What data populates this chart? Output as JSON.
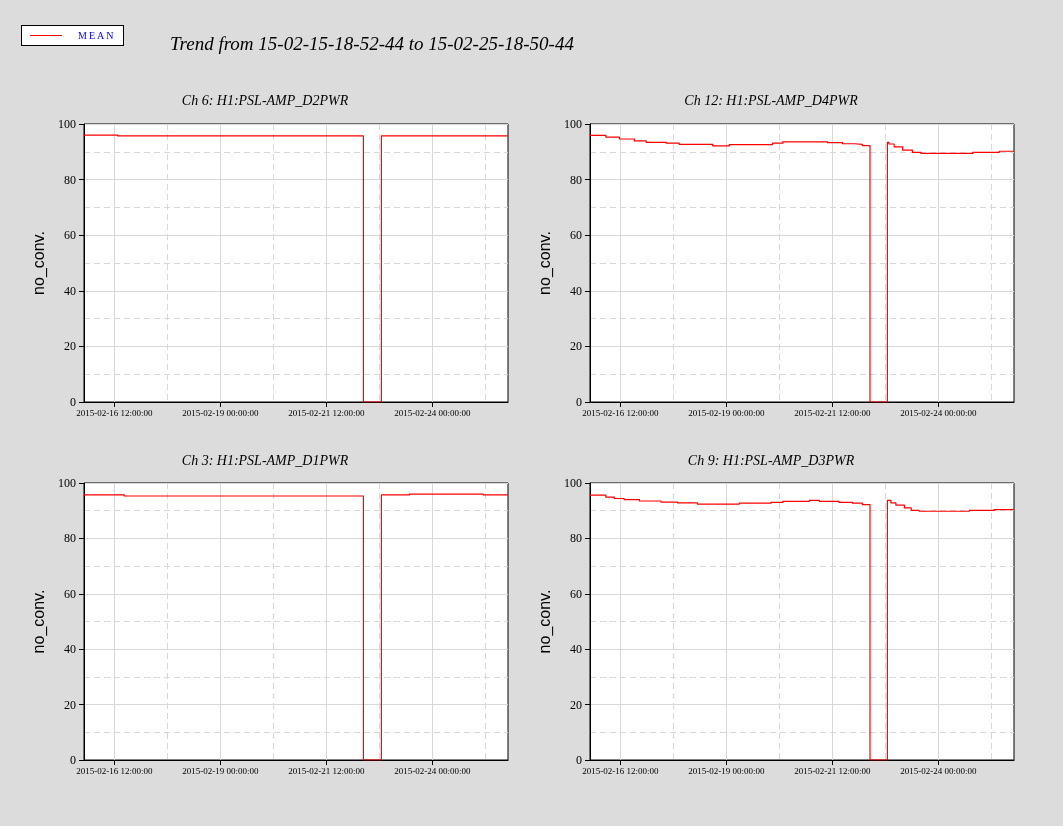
{
  "chart_data": [
    {
      "type": "step",
      "title": "Ch 6: H1:PSL-AMP_D2PWR",
      "ylabel": "no_conv.",
      "annotations": [
        "Trend from 15-02-15-18-52-44 to 15-02-25-18-50-44"
      ],
      "legend": "top left",
      "grid": true,
      "xlim": [
        "2015-02-15T18:52",
        "2015-02-25T18:50"
      ],
      "xticks": [
        {
          "value": "2015-02-16T12:00",
          "label": "2015-02-16 12:00:00"
        },
        {
          "value": "2015-02-17T18:00",
          "label": null
        },
        {
          "value": "2015-02-19T00:00",
          "label": "2015-02-19 00:00:00"
        },
        {
          "value": "2015-02-20T06:00",
          "label": null
        },
        {
          "value": "2015-02-21T12:00",
          "label": "2015-02-21 12:00:00"
        },
        {
          "value": "2015-02-22T18:00",
          "label": null
        },
        {
          "value": "2015-02-24T00:00",
          "label": "2015-02-24 00:00:00"
        },
        {
          "value": "2015-02-25T06:00",
          "label": null
        }
      ],
      "ylim": [
        0,
        100
      ],
      "yticks": [
        0,
        {
          "value": 10,
          "label": null
        },
        20,
        {
          "value": 30,
          "label": null
        },
        40,
        {
          "value": 50,
          "label": null
        },
        60,
        {
          "value": 70,
          "label": null
        },
        80,
        {
          "value": 90,
          "label": null
        },
        100
      ],
      "series": [
        {
          "name": "MEAN",
          "color": "#ff0000",
          "x": [
            "2015-02-15T18:52",
            "2015-02-16T14:00",
            "2015-02-22T09:00",
            "2015-02-22T19:10",
            "2015-02-25T18:50"
          ],
          "values": [
            96.0,
            95.7,
            0,
            95.7,
            95.7
          ]
        }
      ]
    },
    {
      "type": "step",
      "title": "Ch 12: H1:PSL-AMP_D4PWR",
      "ylabel": "no_conv.",
      "grid": true,
      "xlim": [
        "2015-02-15T18:52",
        "2015-02-25T18:50"
      ],
      "xticks": [
        {
          "value": "2015-02-16T12:00",
          "label": "2015-02-16 12:00:00"
        },
        {
          "value": "2015-02-17T18:00",
          "label": null
        },
        {
          "value": "2015-02-19T00:00",
          "label": "2015-02-19 00:00:00"
        },
        {
          "value": "2015-02-20T06:00",
          "label": null
        },
        {
          "value": "2015-02-21T12:00",
          "label": "2015-02-21 12:00:00"
        },
        {
          "value": "2015-02-22T18:00",
          "label": null
        },
        {
          "value": "2015-02-24T00:00",
          "label": "2015-02-24 00:00:00"
        },
        {
          "value": "2015-02-25T06:00",
          "label": null
        }
      ],
      "ylim": [
        0,
        100
      ],
      "yticks": [
        0,
        {
          "value": 10,
          "label": null
        },
        20,
        {
          "value": 30,
          "label": null
        },
        40,
        {
          "value": 50,
          "label": null
        },
        60,
        {
          "value": 70,
          "label": null
        },
        80,
        {
          "value": 90,
          "label": null
        },
        100
      ],
      "series": [
        {
          "color": "#ff0000",
          "x": [
            "2015-02-15T18:52",
            "2015-02-16T03:50",
            "2015-02-16T11:30",
            "2015-02-16T20:00",
            "2015-02-17T02:40",
            "2015-02-17T14:00",
            "2015-02-17T21:20",
            "2015-02-18T16:20",
            "2015-02-19T01:40",
            "2015-02-20T02:10",
            "2015-02-20T08:00",
            "2015-02-21T09:20",
            "2015-02-21T17:50",
            "2015-02-22T00:30",
            "2015-02-22T05:00",
            "2015-02-22T09:20",
            "2015-02-22T19:10",
            "2015-02-22T20:00",
            "2015-02-22T23:00",
            "2015-02-23T03:50",
            "2015-02-23T09:20",
            "2015-02-23T14:10",
            "2015-02-24T19:30",
            "2015-02-25T10:30",
            "2015-02-25T18:50"
          ],
          "values": [
            95.9,
            95.3,
            94.6,
            93.9,
            93.4,
            93.1,
            92.7,
            92.1,
            92.6,
            93.1,
            93.6,
            93.3,
            92.9,
            92.7,
            92.2,
            0,
            93.4,
            92.8,
            91.8,
            90.6,
            89.8,
            89.4,
            89.8,
            90.2,
            90.2
          ]
        }
      ]
    },
    {
      "type": "step",
      "title": "Ch 3: H1:PSL-AMP_D1PWR",
      "ylabel": "no_conv.",
      "grid": true,
      "xlim": [
        "2015-02-15T18:52",
        "2015-02-25T18:50"
      ],
      "xticks": [
        {
          "value": "2015-02-16T12:00",
          "label": "2015-02-16 12:00:00"
        },
        {
          "value": "2015-02-17T18:00",
          "label": null
        },
        {
          "value": "2015-02-19T00:00",
          "label": "2015-02-19 00:00:00"
        },
        {
          "value": "2015-02-20T06:00",
          "label": null
        },
        {
          "value": "2015-02-21T12:00",
          "label": "2015-02-21 12:00:00"
        },
        {
          "value": "2015-02-22T18:00",
          "label": null
        },
        {
          "value": "2015-02-24T00:00",
          "label": "2015-02-24 00:00:00"
        },
        {
          "value": "2015-02-25T06:00",
          "label": null
        }
      ],
      "ylim": [
        0,
        100
      ],
      "yticks": [
        0,
        {
          "value": 10,
          "label": null
        },
        20,
        {
          "value": 30,
          "label": null
        },
        40,
        {
          "value": 50,
          "label": null
        },
        60,
        {
          "value": 70,
          "label": null
        },
        80,
        {
          "value": 90,
          "label": null
        },
        100
      ],
      "series": [
        {
          "color": "#ff0000",
          "x": [
            "2015-02-15T18:52",
            "2015-02-16T17:40",
            "2015-02-22T09:00",
            "2015-02-22T19:10",
            "2015-02-23T11:00",
            "2015-02-25T04:50",
            "2015-02-25T18:50"
          ],
          "values": [
            95.7,
            95.3,
            0,
            95.7,
            96.0,
            95.7,
            95.7
          ]
        }
      ]
    },
    {
      "type": "step",
      "title": "Ch 9: H1:PSL-AMP_D3PWR",
      "ylabel": "no_conv.",
      "grid": true,
      "xlim": [
        "2015-02-15T18:52",
        "2015-02-25T18:50"
      ],
      "xticks": [
        {
          "value": "2015-02-16T12:00",
          "label": "2015-02-16 12:00:00"
        },
        {
          "value": "2015-02-17T18:00",
          "label": null
        },
        {
          "value": "2015-02-19T00:00",
          "label": "2015-02-19 00:00:00"
        },
        {
          "value": "2015-02-20T06:00",
          "label": null
        },
        {
          "value": "2015-02-21T12:00",
          "label": "2015-02-21 12:00:00"
        },
        {
          "value": "2015-02-22T18:00",
          "label": null
        },
        {
          "value": "2015-02-24T00:00",
          "label": "2015-02-24 00:00:00"
        },
        {
          "value": "2015-02-25T06:00",
          "label": null
        }
      ],
      "ylim": [
        0,
        100
      ],
      "yticks": [
        0,
        {
          "value": 10,
          "label": null
        },
        20,
        {
          "value": 30,
          "label": null
        },
        40,
        {
          "value": 50,
          "label": null
        },
        60,
        {
          "value": 70,
          "label": null
        },
        80,
        {
          "value": 90,
          "label": null
        },
        100
      ],
      "series": [
        {
          "color": "#ff0000",
          "x": [
            "2015-02-15T18:52",
            "2015-02-16T03:50",
            "2015-02-16T08:40",
            "2015-02-16T14:10",
            "2015-02-16T22:50",
            "2015-02-17T11:00",
            "2015-02-17T20:30",
            "2015-02-18T07:40",
            "2015-02-19T07:20",
            "2015-02-20T01:20",
            "2015-02-20T08:00",
            "2015-02-20T23:00",
            "2015-02-21T04:40",
            "2015-02-21T15:50",
            "2015-02-21T23:30",
            "2015-02-22T05:00",
            "2015-02-22T09:20",
            "2015-02-22T19:10",
            "2015-02-22T21:10",
            "2015-02-23T00:00",
            "2015-02-23T04:50",
            "2015-02-23T08:40",
            "2015-02-23T13:10",
            "2015-02-24T17:30",
            "2015-02-25T07:40",
            "2015-02-25T18:50"
          ],
          "values": [
            95.6,
            94.9,
            94.4,
            94.0,
            93.5,
            93.1,
            92.8,
            92.4,
            92.7,
            93.0,
            93.4,
            93.7,
            93.4,
            93.0,
            92.7,
            92.2,
            0,
            93.7,
            92.8,
            92.0,
            91.0,
            90.1,
            89.8,
            90.1,
            90.4,
            90.4
          ]
        }
      ]
    }
  ]
}
